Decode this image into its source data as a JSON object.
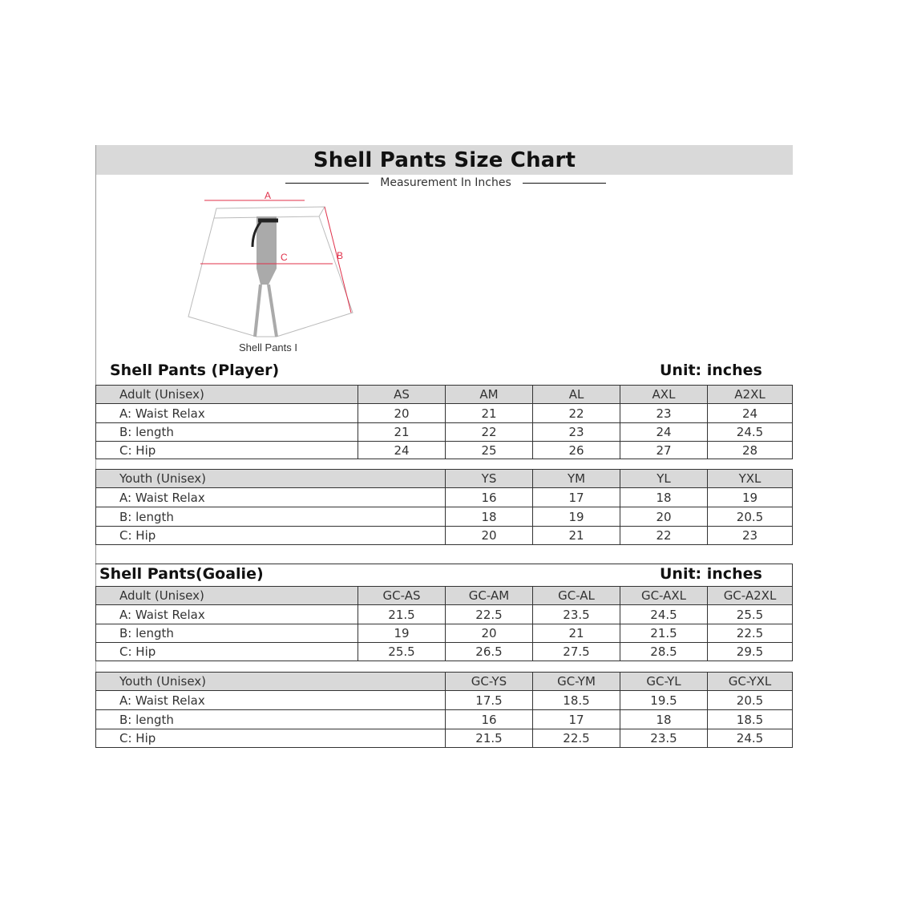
{
  "title": "Shell Pants Size Chart",
  "subtitle": "Measurement In Inches",
  "diagram": {
    "caption": "Shell Pants I",
    "labels": [
      "A",
      "B",
      "C"
    ],
    "accent_color": "#e0304a"
  },
  "player": {
    "title": "Shell Pants (Player)",
    "unit": "Unit: inches",
    "adult": {
      "header": [
        "Adult (Unisex)",
        "AS",
        "AM",
        "AL",
        "AXL",
        "A2XL"
      ],
      "rows": [
        [
          "A: Waist Relax",
          "20",
          "21",
          "22",
          "23",
          "24"
        ],
        [
          "B: length",
          "21",
          "22",
          "23",
          "24",
          "24.5"
        ],
        [
          "C: Hip",
          "24",
          "25",
          "26",
          "27",
          "28"
        ]
      ]
    },
    "youth": {
      "header": [
        "Youth (Unisex)",
        "YS",
        "YM",
        "YL",
        "YXL"
      ],
      "rows": [
        [
          "A: Waist Relax",
          "16",
          "17",
          "18",
          "19"
        ],
        [
          "B: length",
          "18",
          "19",
          "20",
          "20.5"
        ],
        [
          "C: Hip",
          "20",
          "21",
          "22",
          "23"
        ]
      ]
    }
  },
  "goalie": {
    "title": "Shell Pants(Goalie)",
    "unit": "Unit: inches",
    "adult": {
      "header": [
        "Adult (Unisex)",
        "GC-AS",
        "GC-AM",
        "GC-AL",
        "GC-AXL",
        "GC-A2XL"
      ],
      "rows": [
        [
          "A: Waist Relax",
          "21.5",
          "22.5",
          "23.5",
          "24.5",
          "25.5"
        ],
        [
          "B: length",
          "19",
          "20",
          "21",
          "21.5",
          "22.5"
        ],
        [
          "C: Hip",
          "25.5",
          "26.5",
          "27.5",
          "28.5",
          "29.5"
        ]
      ]
    },
    "youth": {
      "header": [
        "Youth (Unisex)",
        "GC-YS",
        "GC-YM",
        "GC-YL",
        "GC-YXL"
      ],
      "rows": [
        [
          "A: Waist Relax",
          "17.5",
          "18.5",
          "19.5",
          "20.5"
        ],
        [
          "B: length",
          "16",
          "17",
          "18",
          "18.5"
        ],
        [
          "C: Hip",
          "21.5",
          "22.5",
          "23.5",
          "24.5"
        ]
      ]
    }
  }
}
